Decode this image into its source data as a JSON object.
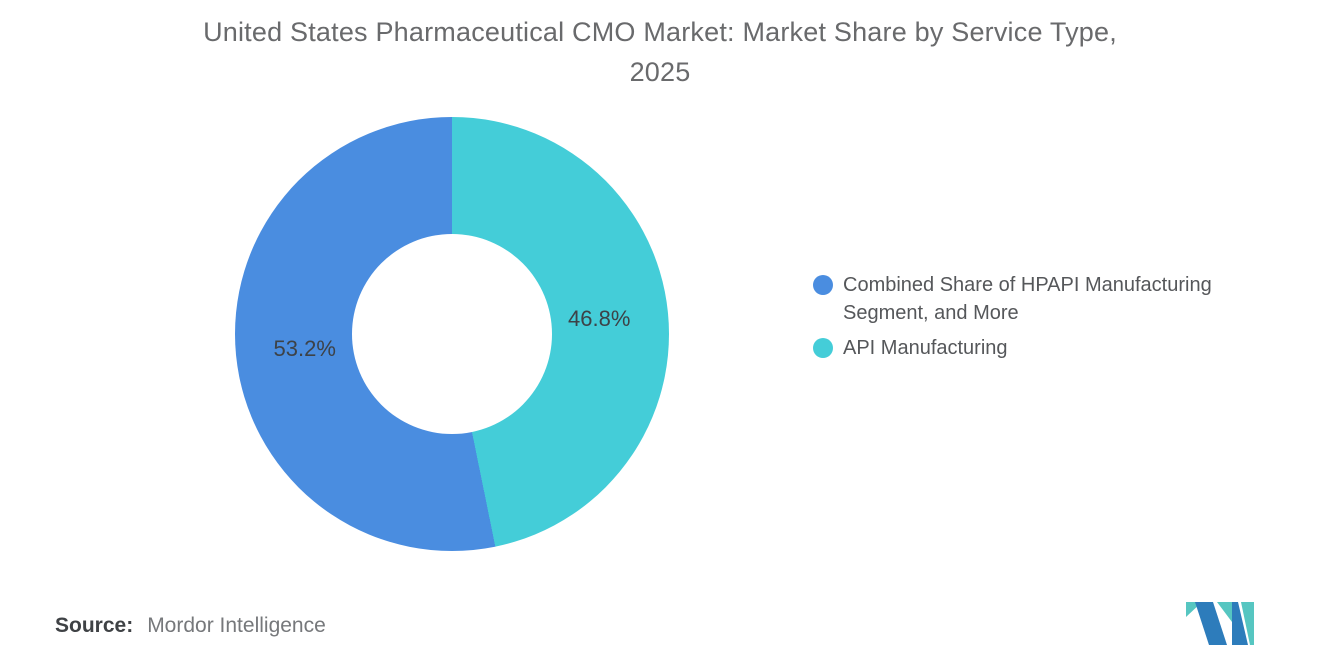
{
  "title": {
    "line1": "United States Pharmaceutical CMO Market: Market Share by Service Type,",
    "line2": "2025"
  },
  "chart_data": {
    "type": "pie",
    "subtype": "donut",
    "title": "United States Pharmaceutical CMO Market: Market Share by Service Type, 2025",
    "units": "%",
    "direction": "clockwise",
    "start_angle_deg": 0,
    "start_segment": "API Manufacturing",
    "draw_order": [
      1,
      0
    ],
    "inner_radius_ratio": 0.46,
    "legend_position": "right",
    "segments": [
      {
        "label": "Combined Share of HPAPI Manufacturing Segment, and More",
        "value": 53.2,
        "value_label": "53.2%",
        "color": "#4a8de0"
      },
      {
        "label": "API Manufacturing",
        "value": 46.8,
        "value_label": "46.8%",
        "color": "#44cdd8"
      }
    ]
  },
  "source": {
    "label": "Source:",
    "value": "Mordor Intelligence"
  },
  "logo": {
    "name": "mordor-intelligence-logo",
    "blue": "#2d7cbb",
    "teal": "#56c6c1"
  }
}
